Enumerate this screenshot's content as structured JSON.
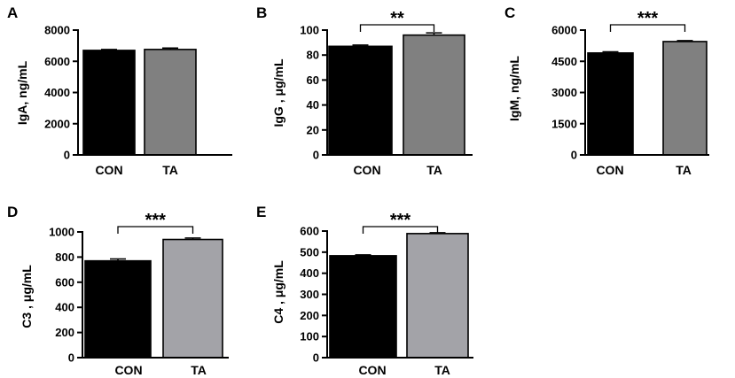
{
  "chart_data": [
    {
      "panel": "A",
      "type": "bar",
      "categories": [
        "CON",
        "TA"
      ],
      "values": [
        6700,
        6760
      ],
      "errors": [
        60,
        90
      ],
      "colors": [
        "#000000",
        "#808080"
      ],
      "ylabel": "IgA, ng/mL",
      "ylim": [
        0,
        8000
      ],
      "yticks": [
        "0",
        "2000",
        "4000",
        "6000",
        "8000"
      ],
      "significance": null
    },
    {
      "panel": "B",
      "type": "bar",
      "categories": [
        "CON",
        "TA"
      ],
      "values": [
        87,
        96
      ],
      "errors": [
        1,
        1.8
      ],
      "colors": [
        "#000000",
        "#808080"
      ],
      "ylabel": "IgG , μg/mL",
      "ylim": [
        0,
        100
      ],
      "yticks": [
        "0",
        "20",
        "40",
        "60",
        "80",
        "100"
      ],
      "significance": "**"
    },
    {
      "panel": "C",
      "type": "bar",
      "categories": [
        "CON",
        "TA"
      ],
      "values": [
        4900,
        5450
      ],
      "errors": [
        60,
        45
      ],
      "colors": [
        "#000000",
        "#808080"
      ],
      "ylabel": "IgM, ng/mL",
      "ylim": [
        0,
        6000
      ],
      "yticks": [
        "0",
        "1500",
        "3000",
        "4500",
        "6000"
      ],
      "significance": "***"
    },
    {
      "panel": "D",
      "type": "bar",
      "categories": [
        "CON",
        "TA"
      ],
      "values": [
        770,
        940
      ],
      "errors": [
        15,
        12
      ],
      "colors": [
        "#000000",
        "#a3a3a8"
      ],
      "ylabel": "C3 , μg/mL",
      "ylim": [
        0,
        1000
      ],
      "yticks": [
        "0",
        "200",
        "400",
        "600",
        "800",
        "1000"
      ],
      "significance": "***"
    },
    {
      "panel": "E",
      "type": "bar",
      "categories": [
        "CON",
        "TA"
      ],
      "values": [
        483,
        588
      ],
      "errors": [
        4,
        4
      ],
      "colors": [
        "#000000",
        "#a3a3a8"
      ],
      "ylabel": "C4 , μg/mL",
      "ylim": [
        0,
        600
      ],
      "yticks": [
        "0",
        "100",
        "200",
        "300",
        "400",
        "500",
        "600"
      ],
      "significance": "***"
    }
  ]
}
